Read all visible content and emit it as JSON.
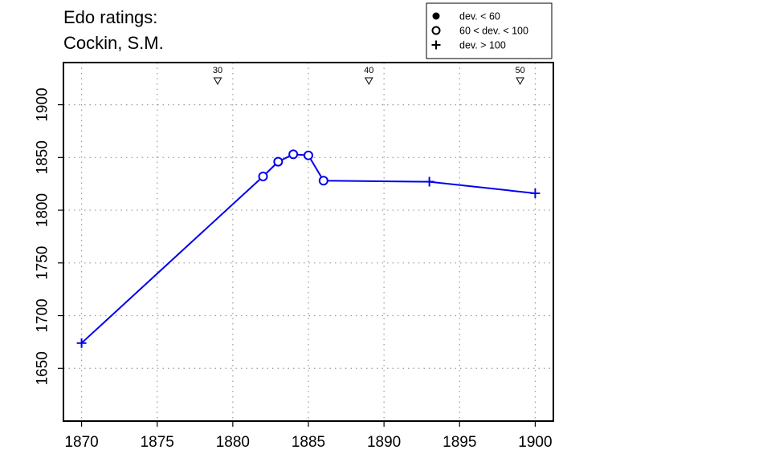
{
  "title": {
    "line1": "Edo ratings:",
    "line2": "Cockin, S.M."
  },
  "chart_data": {
    "type": "line",
    "color": "#0000ee",
    "xlim": [
      1868.8,
      1901.2
    ],
    "ylim": [
      1600,
      1940
    ],
    "x_ticks": [
      1870,
      1875,
      1880,
      1885,
      1890,
      1895,
      1900
    ],
    "y_ticks": [
      1650,
      1700,
      1750,
      1800,
      1850,
      1900
    ],
    "grid": true,
    "legend_position": "top-right",
    "legend": [
      {
        "marker": "filled-circle",
        "label": "dev. < 60"
      },
      {
        "marker": "open-circle",
        "label": "60 < dev. < 100"
      },
      {
        "marker": "plus",
        "label": "dev. > 100"
      }
    ],
    "age_markers": [
      {
        "x": 1879,
        "label": "30"
      },
      {
        "x": 1889,
        "label": "40"
      },
      {
        "x": 1899,
        "label": "50"
      }
    ],
    "series": [
      {
        "points": [
          {
            "x": 1870,
            "y": 1674,
            "marker": "plus"
          },
          {
            "x": 1882,
            "y": 1832,
            "marker": "open-circle"
          },
          {
            "x": 1883,
            "y": 1846,
            "marker": "open-circle"
          },
          {
            "x": 1884,
            "y": 1853,
            "marker": "open-circle"
          },
          {
            "x": 1885,
            "y": 1852,
            "marker": "open-circle"
          },
          {
            "x": 1886,
            "y": 1828,
            "marker": "open-circle"
          },
          {
            "x": 1893,
            "y": 1827,
            "marker": "plus"
          },
          {
            "x": 1900,
            "y": 1816,
            "marker": "plus"
          }
        ]
      }
    ]
  }
}
